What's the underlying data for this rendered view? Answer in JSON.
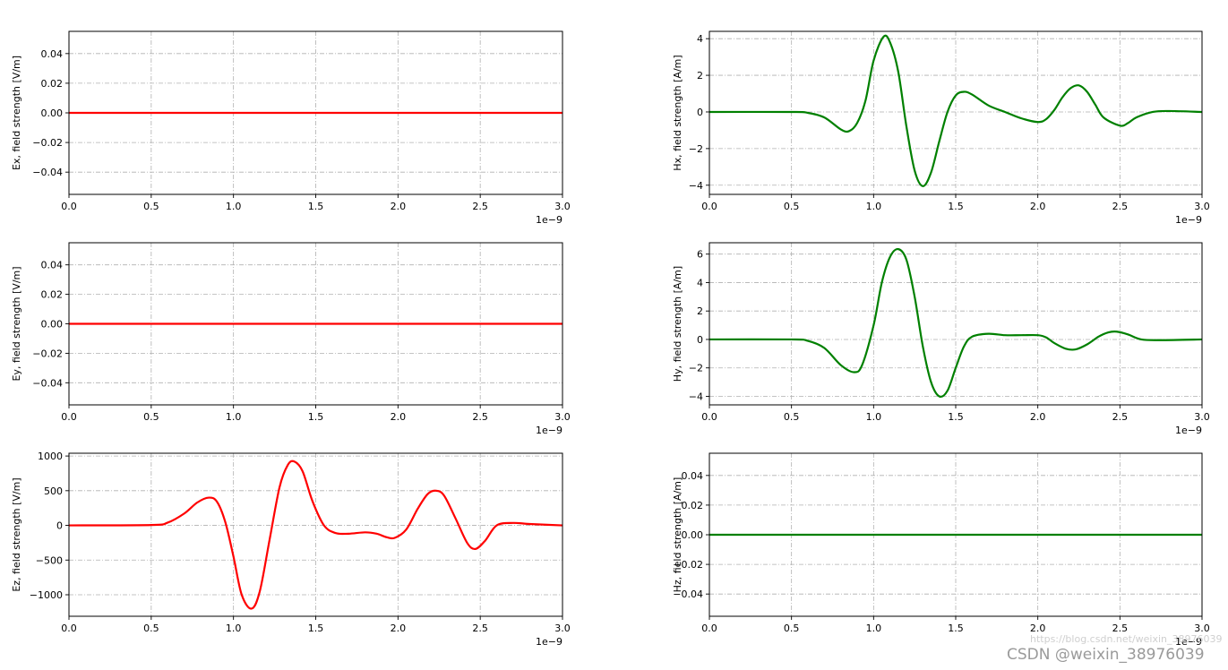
{
  "watermark": {
    "main": "CSDN @weixin_38976039",
    "url": "https://blog.csdn.net/weixin_38976039"
  },
  "chart_data": [
    {
      "type": "line",
      "ylabel": "Ex, field strength [V/m]",
      "xlim": [
        0,
        3.0
      ],
      "ylim": [
        -0.055,
        0.055
      ],
      "xticks": [
        0.0,
        0.5,
        1.0,
        1.5,
        2.0,
        2.5,
        3.0
      ],
      "xtick_labels": [
        "0.0",
        "0.5",
        "1.0",
        "1.5",
        "2.0",
        "2.5",
        "3.0"
      ],
      "yticks": [
        0.04,
        0.02,
        0.0,
        -0.02,
        -0.04
      ],
      "ytick_labels": [
        "0.04",
        "0.02",
        "0.00",
        "−0.02",
        "−0.04"
      ],
      "x_offset_label": "1e−9",
      "grid": true,
      "color": "#ff0000",
      "series": [
        {
          "x": [
            0,
            3.0
          ],
          "y": [
            0,
            0
          ]
        }
      ]
    },
    {
      "type": "line",
      "ylabel": "Hx, field strength [A/m]",
      "xlim": [
        0,
        3.0
      ],
      "ylim": [
        -4.5,
        4.4
      ],
      "xticks": [
        0.0,
        0.5,
        1.0,
        1.5,
        2.0,
        2.5,
        3.0
      ],
      "xtick_labels": [
        "0.0",
        "0.5",
        "1.0",
        "1.5",
        "2.0",
        "2.5",
        "3.0"
      ],
      "yticks": [
        4,
        2,
        0,
        -2,
        -4
      ],
      "ytick_labels": [
        "4",
        "2",
        "0",
        "−2",
        "−4"
      ],
      "x_offset_label": "1e−9",
      "grid": true,
      "color": "#008000",
      "series": [
        {
          "x": [
            0,
            0.5,
            0.6,
            0.7,
            0.8,
            0.85,
            0.9,
            0.95,
            1.0,
            1.06,
            1.1,
            1.15,
            1.2,
            1.25,
            1.3,
            1.35,
            1.4,
            1.45,
            1.5,
            1.55,
            1.6,
            1.7,
            1.8,
            1.9,
            2.0,
            2.05,
            2.1,
            2.15,
            2.2,
            2.25,
            2.3,
            2.35,
            2.4,
            2.5,
            2.55,
            2.6,
            2.7,
            2.8,
            3.0
          ],
          "y": [
            0,
            0,
            -0.05,
            -0.3,
            -0.95,
            -1.05,
            -0.6,
            0.6,
            2.8,
            4.1,
            3.8,
            2.2,
            -0.8,
            -3.2,
            -4.05,
            -3.3,
            -1.6,
            0.0,
            0.9,
            1.1,
            0.95,
            0.35,
            0.0,
            -0.35,
            -0.55,
            -0.4,
            0.1,
            0.8,
            1.3,
            1.45,
            1.1,
            0.4,
            -0.3,
            -0.75,
            -0.6,
            -0.3,
            0.0,
            0.05,
            0.0
          ]
        }
      ]
    },
    {
      "type": "line",
      "ylabel": "Ey, field strength [V/m]",
      "xlim": [
        0,
        3.0
      ],
      "ylim": [
        -0.055,
        0.055
      ],
      "xticks": [
        0.0,
        0.5,
        1.0,
        1.5,
        2.0,
        2.5,
        3.0
      ],
      "xtick_labels": [
        "0.0",
        "0.5",
        "1.0",
        "1.5",
        "2.0",
        "2.5",
        "3.0"
      ],
      "yticks": [
        0.04,
        0.02,
        0.0,
        -0.02,
        -0.04
      ],
      "ytick_labels": [
        "0.04",
        "0.02",
        "0.00",
        "−0.02",
        "−0.04"
      ],
      "x_offset_label": "1e−9",
      "grid": true,
      "color": "#ff0000",
      "series": [
        {
          "x": [
            0,
            3.0
          ],
          "y": [
            0,
            0
          ]
        }
      ]
    },
    {
      "type": "line",
      "ylabel": "Hy, field strength [A/m]",
      "xlim": [
        0,
        3.0
      ],
      "ylim": [
        -4.6,
        6.8
      ],
      "xticks": [
        0.0,
        0.5,
        1.0,
        1.5,
        2.0,
        2.5,
        3.0
      ],
      "xtick_labels": [
        "0.0",
        "0.5",
        "1.0",
        "1.5",
        "2.0",
        "2.5",
        "3.0"
      ],
      "yticks": [
        6,
        4,
        2,
        0,
        -2,
        -4
      ],
      "ytick_labels": [
        "6",
        "4",
        "2",
        "0",
        "−2",
        "−4"
      ],
      "x_offset_label": "1e−9",
      "grid": true,
      "color": "#008000",
      "series": [
        {
          "x": [
            0,
            0.5,
            0.6,
            0.7,
            0.8,
            0.88,
            0.93,
            1.0,
            1.05,
            1.1,
            1.15,
            1.2,
            1.25,
            1.3,
            1.35,
            1.4,
            1.45,
            1.5,
            1.55,
            1.6,
            1.7,
            1.8,
            1.9,
            2.0,
            2.05,
            2.1,
            2.17,
            2.23,
            2.3,
            2.37,
            2.43,
            2.48,
            2.55,
            2.63,
            2.75,
            3.0
          ],
          "y": [
            0,
            0,
            -0.1,
            -0.6,
            -1.8,
            -2.3,
            -1.8,
            1.0,
            4.0,
            5.8,
            6.35,
            5.6,
            3.0,
            -0.5,
            -3.0,
            -4.0,
            -3.6,
            -2.0,
            -0.5,
            0.2,
            0.4,
            0.3,
            0.3,
            0.3,
            0.15,
            -0.25,
            -0.65,
            -0.7,
            -0.35,
            0.2,
            0.5,
            0.55,
            0.35,
            0.0,
            -0.05,
            0.0
          ]
        }
      ]
    },
    {
      "type": "line",
      "ylabel": "Ez, field strength [V/m]",
      "xlim": [
        0,
        3.0
      ],
      "ylim": [
        -1310,
        1040
      ],
      "xticks": [
        0.0,
        0.5,
        1.0,
        1.5,
        2.0,
        2.5,
        3.0
      ],
      "xtick_labels": [
        "0.0",
        "0.5",
        "1.0",
        "1.5",
        "2.0",
        "2.5",
        "3.0"
      ],
      "yticks": [
        1000,
        500,
        0,
        -500,
        -1000
      ],
      "ytick_labels": [
        "1000",
        "500",
        "0",
        "−500",
        "−1000"
      ],
      "x_offset_label": "1e−9",
      "grid": true,
      "color": "#ff0000",
      "series": [
        {
          "x": [
            0,
            0.5,
            0.6,
            0.7,
            0.78,
            0.85,
            0.9,
            0.95,
            1.0,
            1.05,
            1.11,
            1.16,
            1.22,
            1.28,
            1.33,
            1.37,
            1.42,
            1.48,
            1.55,
            1.62,
            1.7,
            1.8,
            1.87,
            1.93,
            1.98,
            2.05,
            2.12,
            2.18,
            2.23,
            2.28,
            2.35,
            2.42,
            2.47,
            2.53,
            2.6,
            2.7,
            2.8,
            3.0
          ],
          "y": [
            0,
            5,
            40,
            170,
            330,
            400,
            340,
            50,
            -450,
            -1000,
            -1200,
            -950,
            -200,
            550,
            870,
            920,
            780,
            350,
            0,
            -110,
            -120,
            -100,
            -120,
            -170,
            -180,
            -60,
            240,
            450,
            500,
            430,
            100,
            -250,
            -340,
            -220,
            0,
            35,
            20,
            0
          ]
        }
      ]
    },
    {
      "type": "line",
      "ylabel": "Hz, field strength [A/m]",
      "xlim": [
        0,
        3.0
      ],
      "ylim": [
        -0.055,
        0.055
      ],
      "xticks": [
        0.0,
        0.5,
        1.0,
        1.5,
        2.0,
        2.5,
        3.0
      ],
      "xtick_labels": [
        "0.0",
        "0.5",
        "1.0",
        "1.5",
        "2.0",
        "2.5",
        "3.0"
      ],
      "yticks": [
        0.04,
        0.02,
        0.0,
        -0.02,
        -0.04
      ],
      "ytick_labels": [
        "0.04",
        "0.02",
        "0.00",
        "−0.02",
        "−0.04"
      ],
      "x_offset_label": "1e−9",
      "grid": true,
      "color": "#008000",
      "series": [
        {
          "x": [
            0,
            3.0
          ],
          "y": [
            0,
            0
          ]
        }
      ]
    }
  ]
}
